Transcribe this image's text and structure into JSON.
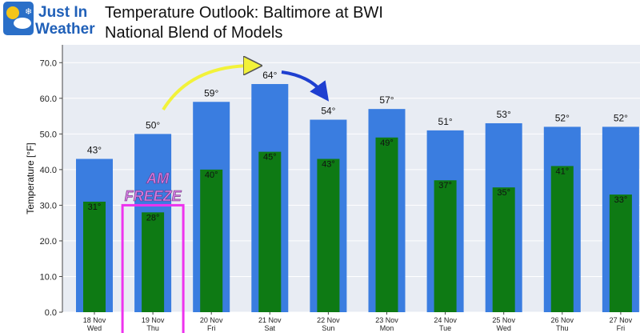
{
  "header": {
    "logo_line1": "Just In",
    "logo_line2": "Weather",
    "title_line1": "Temperature Outlook: Baltimore at BWI",
    "title_line2": "National Blend of Models"
  },
  "annotation": {
    "line1": "AM",
    "line2": "FREEZE",
    "color": "#ee33ee",
    "highlighted_category": "19 Nov"
  },
  "colors": {
    "high": "#3a7de0",
    "low": "#0e7a14",
    "arrow_yellow": "#f2f23a",
    "arrow_blue": "#1f3fd0",
    "background": "#e8ecf3"
  },
  "chart_data": {
    "type": "bar",
    "ylabel": "Temperature [°F]",
    "ylim": [
      0,
      75
    ],
    "yticks": [
      0,
      10,
      20,
      30,
      40,
      50,
      60,
      70
    ],
    "grid": true,
    "categories": [
      "18 Nov",
      "19 Nov",
      "20 Nov",
      "21 Nov",
      "22 Nov",
      "23 Nov",
      "24 Nov",
      "25 Nov",
      "26 Nov",
      "27 Nov"
    ],
    "weekdays": [
      "Wed",
      "Thu",
      "Fri",
      "Sat",
      "Sun",
      "Mon",
      "Tue",
      "Wed",
      "Thu",
      "Fri"
    ],
    "series": [
      {
        "key": "high",
        "values": [
          43,
          50,
          59,
          64,
          54,
          57,
          51,
          53,
          52,
          52
        ]
      },
      {
        "key": "low",
        "values": [
          31,
          28,
          40,
          45,
          43,
          49,
          37,
          35,
          41,
          33
        ]
      }
    ]
  }
}
